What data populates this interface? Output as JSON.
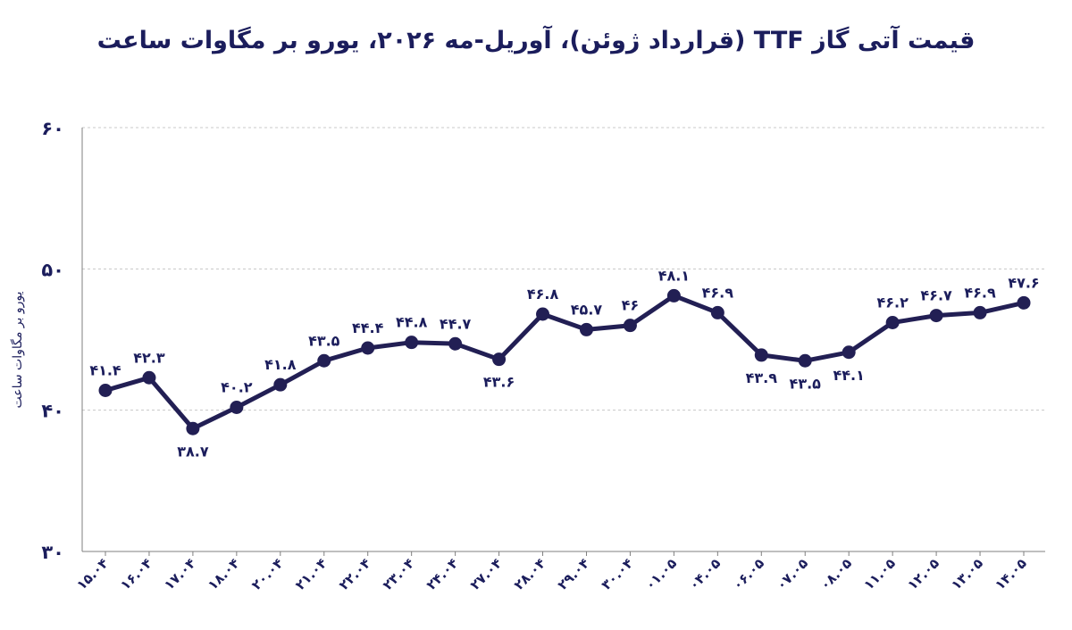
{
  "chart_data": {
    "type": "line",
    "title": "قیمت آتی گاز TTF (قرارداد ژوئن)، آوریل-مه ۲۰۲۶، یورو بر مگاوات ساعت",
    "xlabel": "",
    "ylabel": "یورو بر مگاوات ساعت",
    "ylim": [
      30,
      60
    ],
    "yticks": [
      60,
      50,
      40,
      30
    ],
    "ytick_labels": [
      "۶۰",
      "۵۰",
      "۴۰",
      "۳۰"
    ],
    "grid": true,
    "categories": [
      "۱۵.۰۴",
      "۱۶.۰۴",
      "۱۷.۰۴",
      "۱۸.۰۴",
      "۲۰.۰۴",
      "۲۱.۰۴",
      "۲۲.۰۴",
      "۲۳.۰۴",
      "۲۴.۰۴",
      "۲۷.۰۴",
      "۲۸.۰۴",
      "۲۹.۰۴",
      "۳۰.۰۴",
      "۰۱.۰۵",
      "۰۴.۰۵",
      "۰۶.۰۵",
      "۰۷.۰۵",
      "۰۸.۰۵",
      "۱۱.۰۵",
      "۱۲.۰۵",
      "۱۳.۰۵",
      "۱۴.۰۵"
    ],
    "series": [
      {
        "values": [
          41.4,
          42.3,
          38.7,
          40.2,
          41.8,
          43.5,
          44.4,
          44.8,
          44.7,
          43.6,
          46.8,
          45.7,
          46,
          48.1,
          46.9,
          43.9,
          43.5,
          44.1,
          46.2,
          46.7,
          46.9,
          47.6
        ],
        "labels": [
          "۴۱.۴",
          "۴۲.۳",
          "۳۸.۷",
          "۴۰.۲",
          "۴۱.۸",
          "۴۳.۵",
          "۴۴.۴",
          "۴۴.۸",
          "۴۴.۷",
          "۴۳.۶",
          "۴۶.۸",
          "۴۵.۷",
          "۴۶",
          "۴۸.۱",
          "۴۶.۹",
          "۴۳.۹",
          "۴۳.۵",
          "۴۴.۱",
          "۴۶.۲",
          "۴۶.۷",
          "۴۶.۹",
          "۴۷.۶"
        ],
        "label_positions": [
          "above",
          "above",
          "below",
          "above",
          "above",
          "above",
          "above",
          "above",
          "above",
          "below",
          "above",
          "above",
          "above",
          "above",
          "above",
          "below",
          "below",
          "below",
          "above",
          "above",
          "above",
          "above"
        ]
      }
    ],
    "colors": {
      "line": "#221f54",
      "text": "#1b1d5c",
      "grid": "#c8c8c8",
      "axis": "#7f7f7f"
    }
  }
}
